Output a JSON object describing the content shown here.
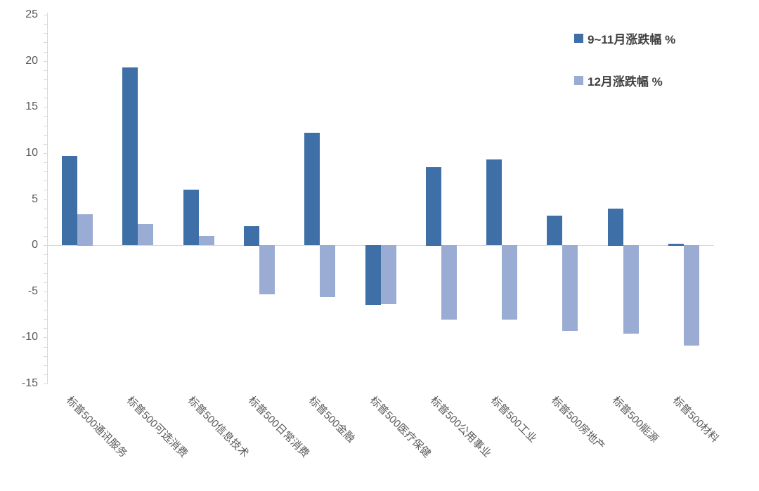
{
  "colors": {
    "series_dark": "#3E6FA6",
    "series_light": "#9AABD4",
    "axis_line": "#D9D9D9",
    "tick_label": "#595959",
    "legend_text": "#404040",
    "background": "#FFFFFF"
  },
  "chart_data": {
    "type": "bar",
    "title": "",
    "xlabel": "",
    "ylabel": "",
    "ylim": [
      -15,
      25
    ],
    "y_tick_step": 5,
    "y_minor_tick_step": 1,
    "grid": "zero-baseline-only",
    "legend_position": "top-right",
    "categories": [
      "标普500通讯服务",
      "标普500可选消费",
      "标普500信息技术",
      "标普500日常消费",
      "标普500金融",
      "标普500医疗保健",
      "标普500公用事业",
      "标普500工业",
      "标普500房地产",
      "标普500能源",
      "标普500材料"
    ],
    "series": [
      {
        "name": "9~11月涨跌幅 %",
        "color": "#3E6FA6",
        "values": [
          9.7,
          19.3,
          6.0,
          2.1,
          12.2,
          -6.5,
          8.5,
          9.3,
          3.2,
          4.0,
          0.2
        ]
      },
      {
        "name": "12月涨跌幅 %",
        "color": "#9AABD4",
        "values": [
          3.4,
          2.3,
          1.0,
          -5.3,
          -5.6,
          -6.4,
          -8.1,
          -8.1,
          -9.3,
          -9.6,
          -10.9
        ]
      }
    ]
  }
}
